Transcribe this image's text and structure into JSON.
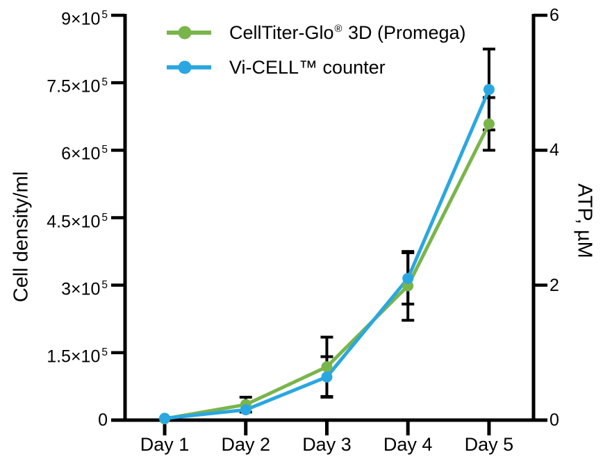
{
  "figure": {
    "background": "#ffffff",
    "axis_color": "#000000"
  },
  "chart_data": {
    "type": "line",
    "title": "",
    "grid": false,
    "legend_position": "top-inside",
    "categories": [
      "Day 1",
      "Day 2",
      "Day 3",
      "Day 4",
      "Day 5"
    ],
    "series": [
      {
        "name": "CellTiter-Glo® 3D (Promega)",
        "legend_label": {
          "pre": "CellTiter-Glo",
          "sup": "®",
          "post": " 3D (Promega)"
        },
        "color": "#7ab54b",
        "marker": "circle",
        "axis": "right",
        "units": "µM",
        "values": [
          0.02,
          0.23,
          0.79,
          1.99,
          4.39
        ],
        "errors": [
          0,
          0.11,
          0.44,
          0.51,
          0.39
        ]
      },
      {
        "name": "Vi-CELL™ counter",
        "legend_label": {
          "pre": "Vi-CELL™ counter",
          "sup": "",
          "post": ""
        },
        "color": "#2aa7e0",
        "marker": "circle",
        "axis": "left",
        "units": "cells/ml",
        "values": [
          4000,
          23000,
          96000,
          315000,
          735000
        ],
        "errors": [
          0,
          0,
          45000,
          57000,
          90000
        ]
      }
    ],
    "left_axis": {
      "label": "Cell density/ml",
      "min": 0,
      "max": 900000,
      "ticks": [
        {
          "value": 0,
          "base": "0",
          "sup": ""
        },
        {
          "value": 150000,
          "base": "1.5×10",
          "sup": "5"
        },
        {
          "value": 300000,
          "base": "3×10",
          "sup": "5"
        },
        {
          "value": 450000,
          "base": "4.5×10",
          "sup": "5"
        },
        {
          "value": 600000,
          "base": "6×10",
          "sup": "5"
        },
        {
          "value": 750000,
          "base": "7.5×10",
          "sup": "5"
        },
        {
          "value": 900000,
          "base": "9×10",
          "sup": "5"
        }
      ]
    },
    "right_axis": {
      "label": "ATP, µM",
      "min": 0,
      "max": 6,
      "ticks": [
        {
          "value": 0,
          "base": "0",
          "sup": ""
        },
        {
          "value": 2,
          "base": "2",
          "sup": ""
        },
        {
          "value": 4,
          "base": "4",
          "sup": ""
        },
        {
          "value": 6,
          "base": "6",
          "sup": ""
        }
      ]
    }
  }
}
